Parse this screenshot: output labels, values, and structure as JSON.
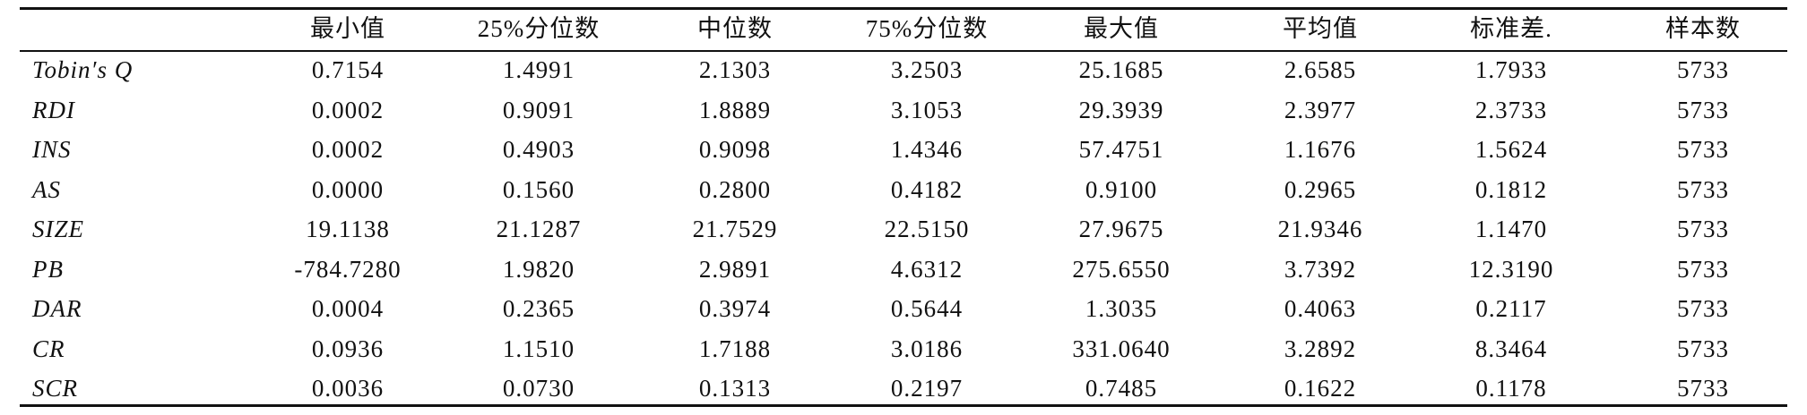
{
  "table": {
    "header": [
      "最小值",
      "25%分位数",
      "中位数",
      "75%分位数",
      "最大值",
      "平均值",
      "标准差.",
      "样本数"
    ],
    "rows": [
      [
        "Tobin′s Q",
        "0.7154",
        "1.4991",
        "2.1303",
        "3.2503",
        "25.1685",
        "2.6585",
        "1.7933",
        "5733"
      ],
      [
        "RDI",
        "0.0002",
        "0.9091",
        "1.8889",
        "3.1053",
        "29.3939",
        "2.3977",
        "2.3733",
        "5733"
      ],
      [
        "INS",
        "0.0002",
        "0.4903",
        "0.9098",
        "1.4346",
        "57.4751",
        "1.1676",
        "1.5624",
        "5733"
      ],
      [
        "AS",
        "0.0000",
        "0.1560",
        "0.2800",
        "0.4182",
        "0.9100",
        "0.2965",
        "0.1812",
        "5733"
      ],
      [
        "SIZE",
        "19.1138",
        "21.1287",
        "21.7529",
        "22.5150",
        "27.9675",
        "21.9346",
        "1.1470",
        "5733"
      ],
      [
        "PB",
        "-784.7280",
        "1.9820",
        "2.9891",
        "4.6312",
        "275.6550",
        "3.7392",
        "12.3190",
        "5733"
      ],
      [
        "DAR",
        "0.0004",
        "0.2365",
        "0.3974",
        "0.5644",
        "1.3035",
        "0.4063",
        "0.2117",
        "5733"
      ],
      [
        "CR",
        "0.0936",
        "1.1510",
        "1.7188",
        "3.0186",
        "331.0640",
        "3.2892",
        "8.3464",
        "5733"
      ],
      [
        "SCR",
        "0.0036",
        "0.0730",
        "0.1313",
        "0.2197",
        "0.7485",
        "0.1622",
        "0.1178",
        "5733"
      ]
    ]
  }
}
